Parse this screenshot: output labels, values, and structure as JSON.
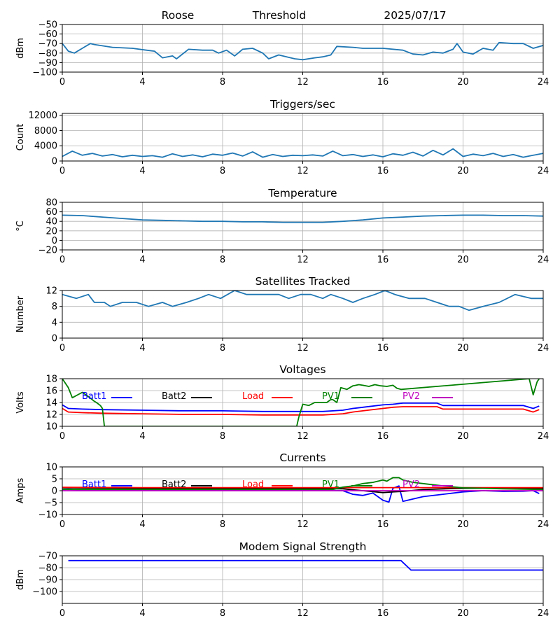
{
  "header": {
    "station": "Roose",
    "mode": "Threshold",
    "date": "2025/07/17"
  },
  "chart_data": [
    {
      "type": "line",
      "title": "",
      "ylabel": "dBm",
      "xlabel": "",
      "xlim": [
        0,
        24
      ],
      "ylim": [
        -100,
        -50
      ],
      "xticks": [
        0,
        4,
        8,
        12,
        16,
        20,
        24
      ],
      "yticks": [
        -100,
        -90,
        -80,
        -70,
        -60,
        -50
      ],
      "grid": true,
      "series": [
        {
          "color": "#1f77b4",
          "x": [
            0,
            0.3,
            0.6,
            1.0,
            1.4,
            1.6,
            2.5,
            3.5,
            4.2,
            4.6,
            5.0,
            5.5,
            5.7,
            6.3,
            7.0,
            7.5,
            7.8,
            8.2,
            8.6,
            9.0,
            9.5,
            10.0,
            10.3,
            10.8,
            11.2,
            11.6,
            12.0,
            12.6,
            13.0,
            13.4,
            13.7,
            14.5,
            15.0,
            16.0,
            17.0,
            17.5,
            18.0,
            18.5,
            19.0,
            19.5,
            19.7,
            20.0,
            20.5,
            21.0,
            21.5,
            21.8,
            22.5,
            23.0,
            23.5,
            24.0
          ],
          "y": [
            -70,
            -78,
            -80,
            -75,
            -70,
            -71,
            -74,
            -75,
            -77,
            -78,
            -85,
            -83,
            -86,
            -76,
            -77,
            -77,
            -80,
            -77,
            -83,
            -76,
            -75,
            -80,
            -86,
            -82,
            -84,
            -86,
            -87,
            -85,
            -84,
            -82,
            -73,
            -74,
            -75,
            -75,
            -77,
            -81,
            -82,
            -79,
            -80,
            -76,
            -70,
            -79,
            -81,
            -75,
            -77,
            -69,
            -70,
            -70,
            -75,
            -72
          ]
        }
      ]
    },
    {
      "type": "line",
      "title": "Triggers/sec",
      "ylabel": "Count",
      "xlabel": "",
      "xlim": [
        0,
        24
      ],
      "ylim": [
        0,
        12500
      ],
      "xticks": [
        0,
        4,
        8,
        12,
        16,
        20,
        24
      ],
      "yticks": [
        0,
        4000,
        8000,
        12000
      ],
      "grid": true,
      "series": [
        {
          "color": "#1f77b4",
          "x": [
            0,
            0.5,
            1.0,
            1.5,
            2.0,
            2.5,
            3.0,
            3.5,
            4.0,
            4.5,
            5.0,
            5.5,
            6.0,
            6.5,
            7.0,
            7.5,
            8.0,
            8.5,
            9.0,
            9.5,
            10.0,
            10.5,
            11.0,
            11.5,
            12.0,
            12.5,
            13.0,
            13.5,
            14.0,
            14.5,
            15.0,
            15.5,
            16.0,
            16.5,
            17.0,
            17.5,
            18.0,
            18.5,
            19.0,
            19.5,
            20.0,
            20.5,
            21.0,
            21.5,
            22.0,
            22.5,
            23.0,
            23.5,
            24.0
          ],
          "y": [
            1200,
            2600,
            1500,
            2000,
            1300,
            1700,
            1100,
            1500,
            1200,
            1400,
            1000,
            1900,
            1200,
            1600,
            1100,
            1800,
            1500,
            2100,
            1300,
            2400,
            1000,
            1700,
            1200,
            1500,
            1400,
            1600,
            1300,
            2600,
            1400,
            1700,
            1200,
            1600,
            1100,
            1900,
            1500,
            2300,
            1300,
            2800,
            1600,
            3200,
            1200,
            1800,
            1400,
            2000,
            1200,
            1700,
            1000,
            1500,
            2000
          ]
        }
      ]
    },
    {
      "type": "line",
      "title": "Temperature",
      "ylabel": "°C",
      "xlabel": "",
      "xlim": [
        0,
        24
      ],
      "ylim": [
        -20,
        80
      ],
      "xticks": [
        0,
        4,
        8,
        12,
        16,
        20,
        24
      ],
      "yticks": [
        -20,
        0,
        20,
        40,
        60,
        80
      ],
      "grid": true,
      "series": [
        {
          "color": "#1f77b4",
          "x": [
            0,
            1,
            2,
            3,
            4,
            5,
            6,
            7,
            8,
            9,
            10,
            11,
            12,
            13,
            14,
            15,
            16,
            17,
            18,
            19,
            20,
            21,
            22,
            23,
            24
          ],
          "y": [
            53,
            52,
            49,
            46,
            43,
            42,
            41,
            40,
            40,
            39,
            39,
            38,
            38,
            38,
            40,
            43,
            47,
            49,
            51,
            52,
            53,
            53,
            52,
            52,
            51
          ]
        }
      ]
    },
    {
      "type": "line",
      "title": "Satellites Tracked",
      "ylabel": "Number",
      "xlabel": "",
      "xlim": [
        0,
        24
      ],
      "ylim": [
        0,
        12
      ],
      "xticks": [
        0,
        4,
        8,
        12,
        16,
        20,
        24
      ],
      "yticks": [
        0,
        4,
        8,
        12
      ],
      "grid": true,
      "series": [
        {
          "color": "#1f77b4",
          "x": [
            0,
            0.7,
            1.3,
            1.6,
            2.1,
            2.4,
            3.0,
            3.7,
            4.3,
            5.0,
            5.5,
            6.2,
            6.8,
            7.3,
            7.9,
            8.6,
            9.2,
            10.0,
            10.8,
            11.3,
            11.9,
            12.4,
            13.0,
            13.4,
            14.0,
            14.5,
            15.0,
            15.6,
            16.1,
            16.6,
            17.3,
            18.1,
            18.7,
            19.3,
            19.8,
            20.3,
            21.0,
            21.8,
            22.6,
            23.4,
            24.0
          ],
          "y": [
            11,
            10,
            11,
            9,
            9,
            8,
            9,
            9,
            8,
            9,
            8,
            9,
            10,
            11,
            10,
            12,
            11,
            11,
            11,
            10,
            11,
            11,
            10,
            11,
            10,
            9,
            10,
            11,
            12,
            11,
            10,
            10,
            9,
            8,
            8,
            7,
            8,
            9,
            11,
            10,
            10
          ]
        }
      ]
    },
    {
      "type": "line",
      "title": "Voltages",
      "ylabel": "Volts",
      "xlabel": "",
      "xlim": [
        0,
        24
      ],
      "ylim": [
        10,
        18
      ],
      "xticks": [
        0,
        4,
        8,
        12,
        16,
        20,
        24
      ],
      "yticks": [
        10,
        12,
        14,
        16,
        18
      ],
      "grid": true,
      "legend": "top",
      "series": [
        {
          "name": "Batt1",
          "color": "#0000ff",
          "x": [
            0,
            0.3,
            1,
            2,
            4,
            6,
            8,
            10,
            12,
            13,
            14,
            14.5,
            15,
            16,
            16.5,
            17,
            18,
            18.7,
            19,
            20,
            21,
            22,
            23,
            23.5,
            23.8
          ],
          "y": [
            13.6,
            13.0,
            12.9,
            12.8,
            12.7,
            12.6,
            12.6,
            12.5,
            12.5,
            12.5,
            12.7,
            13.0,
            13.2,
            13.6,
            13.7,
            13.9,
            13.9,
            13.9,
            13.5,
            13.5,
            13.5,
            13.5,
            13.5,
            13.0,
            13.4
          ]
        },
        {
          "name": "Batt2",
          "color": "#000000",
          "x": [],
          "y": []
        },
        {
          "name": "Load",
          "color": "#ff0000",
          "x": [
            0,
            0.3,
            1,
            2,
            4,
            6,
            8,
            10,
            12,
            13,
            14,
            14.5,
            15,
            16,
            16.5,
            17,
            18,
            18.7,
            19,
            20,
            21,
            22,
            23,
            23.5,
            23.8
          ],
          "y": [
            13.0,
            12.4,
            12.3,
            12.2,
            12.1,
            12.0,
            12.0,
            11.9,
            11.9,
            11.9,
            12.1,
            12.4,
            12.6,
            13.0,
            13.2,
            13.3,
            13.3,
            13.3,
            12.9,
            12.9,
            12.9,
            12.9,
            12.9,
            12.4,
            12.8
          ]
        },
        {
          "name": "PV1",
          "color": "#008000",
          "x": [
            0,
            0.3,
            0.5,
            1.0,
            1.3,
            1.6,
            1.7,
            1.9,
            2.0,
            2.1,
            11.7,
            11.8,
            12.0,
            12.3,
            12.6,
            13.0,
            13.2,
            13.4,
            13.5,
            13.7,
            13.9,
            14.2,
            14.5,
            14.8,
            15.0,
            15.3,
            15.6,
            15.9,
            16.2,
            16.5,
            16.7,
            16.9,
            23.3,
            23.5,
            23.7,
            23.8
          ],
          "y": [
            18.0,
            16.5,
            14.8,
            15.7,
            15.0,
            14.2,
            14.0,
            13.5,
            13.0,
            10.0,
            10.0,
            11.5,
            13.7,
            13.5,
            14.0,
            14.0,
            14.0,
            14.5,
            14.5,
            14.0,
            16.5,
            16.2,
            16.8,
            17.0,
            16.9,
            16.7,
            17.0,
            16.8,
            16.7,
            16.9,
            16.4,
            16.2,
            18.0,
            15.3,
            17.5,
            18.0
          ]
        },
        {
          "name": "PV2",
          "color": "#bf00bf",
          "x": [],
          "y": []
        }
      ]
    },
    {
      "type": "line",
      "title": "Currents",
      "ylabel": "Amps",
      "xlabel": "",
      "xlim": [
        0,
        24
      ],
      "ylim": [
        -10,
        10
      ],
      "xticks": [
        0,
        4,
        8,
        12,
        16,
        20,
        24
      ],
      "yticks": [
        -10,
        -5,
        0,
        5,
        10
      ],
      "grid": true,
      "legend": "top",
      "series": [
        {
          "name": "Batt1",
          "color": "#0000ff",
          "x": [
            0,
            0.3,
            1,
            2,
            4,
            8,
            12,
            13,
            14,
            14.5,
            15,
            15.5,
            16,
            16.3,
            16.5,
            16.8,
            17,
            17.5,
            18,
            19,
            20,
            21,
            22,
            23,
            23.5,
            23.8
          ],
          "y": [
            0.5,
            0.6,
            0.3,
            0.2,
            0.2,
            0.2,
            0.2,
            0.2,
            0.0,
            -1.5,
            -2.0,
            -1.0,
            -4.0,
            -4.8,
            1.0,
            2.0,
            -4.5,
            -3.5,
            -2.5,
            -1.5,
            -0.5,
            0.0,
            -0.3,
            -0.2,
            0.0,
            -1.2
          ]
        },
        {
          "name": "Batt2",
          "color": "#000000",
          "x": [
            0,
            4,
            8,
            12,
            14,
            15,
            16,
            16.5,
            17,
            18,
            20,
            22,
            24
          ],
          "y": [
            1.2,
            1.0,
            1.0,
            1.0,
            0.8,
            0.0,
            -0.8,
            -0.5,
            -0.3,
            0.5,
            1.0,
            1.0,
            1.0
          ]
        },
        {
          "name": "Load",
          "color": "#ff0000",
          "x": [
            0,
            4,
            8,
            12,
            16,
            20,
            24
          ],
          "y": [
            1.4,
            1.3,
            1.3,
            1.3,
            1.3,
            1.3,
            1.3
          ]
        },
        {
          "name": "PV1",
          "color": "#008000",
          "x": [
            0,
            12,
            13.5,
            14,
            14.5,
            15,
            15.5,
            16,
            16.2,
            16.5,
            16.8,
            17.0,
            17.5,
            18,
            19,
            20,
            21,
            22,
            24
          ],
          "y": [
            0.5,
            0.5,
            0.5,
            1.5,
            2.0,
            3.0,
            3.5,
            4.5,
            4.0,
            5.5,
            5.5,
            4.5,
            3.5,
            3.0,
            2.0,
            1.2,
            1.0,
            0.8,
            0.5
          ]
        },
        {
          "name": "PV2",
          "color": "#bf00bf",
          "x": [
            0,
            24
          ],
          "y": [
            0,
            0
          ]
        }
      ]
    },
    {
      "type": "line",
      "title": "Modem Signal Strength",
      "ylabel": "dBm",
      "xlabel": "",
      "xlim": [
        0,
        24
      ],
      "ylim": [
        -110,
        -70
      ],
      "xticks": [
        0,
        4,
        8,
        12,
        16,
        20,
        24
      ],
      "yticks": [
        -100,
        -90,
        -80,
        -70
      ],
      "grid": true,
      "series": [
        {
          "color": "#0000ff",
          "x": [
            0.3,
            16.9,
            17.4,
            24
          ],
          "y": [
            -74,
            -74,
            -82,
            -82
          ]
        }
      ]
    }
  ]
}
